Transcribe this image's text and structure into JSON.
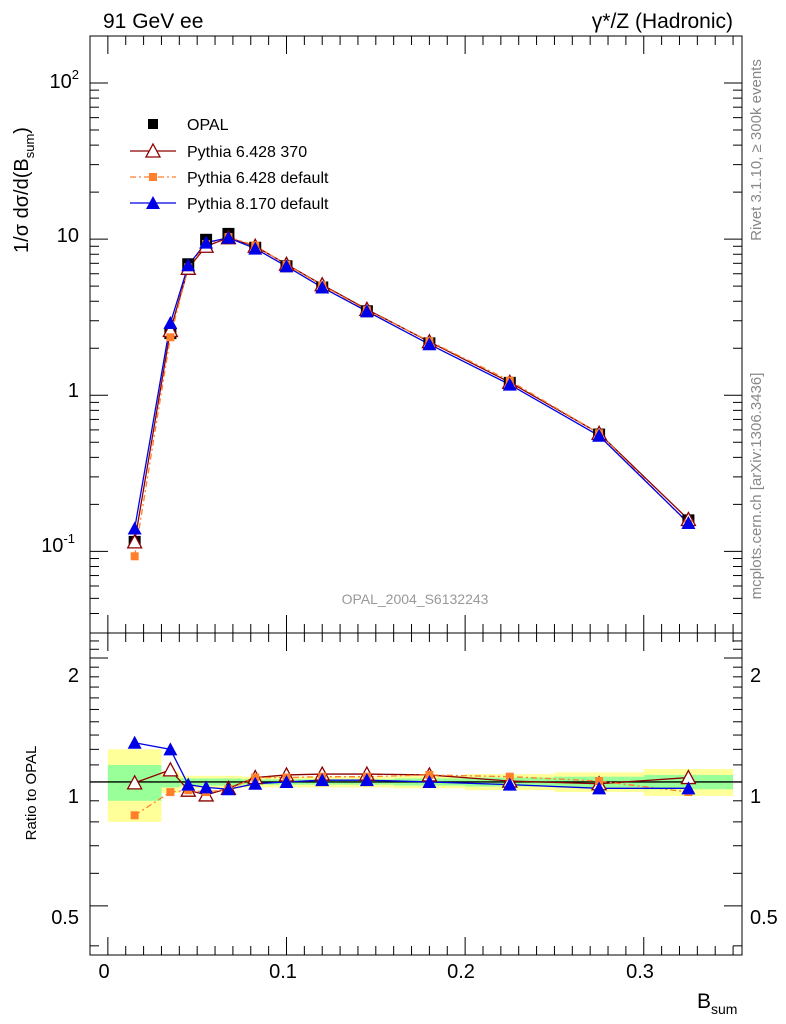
{
  "header": {
    "left": "91 GeV ee",
    "right": "γ*/Z (Hadronic)"
  },
  "side_labels": {
    "rivet": "Rivet 3.1.10, ≥ 300k events",
    "source": "mcplots.cern.ch [arXiv:1306.3436]"
  },
  "watermark": "OPAL_2004_S6132243",
  "axes": {
    "upper_ylabel": "1/σ dσ/d(B",
    "upper_ylabel_sub": "sum",
    "upper_ylabel_end": ")",
    "lower_ylabel": "Ratio to OPAL",
    "xlabel_main": "B",
    "xlabel_sub": "sum",
    "upper_yticks": [
      "10",
      "1",
      "10"
    ],
    "upper_ytick_exps": [
      "-1",
      "2"
    ],
    "lower_yticks": [
      "0.5",
      "1",
      "2"
    ],
    "xticks": [
      "0",
      "0.1",
      "0.2",
      "0.3"
    ]
  },
  "legend": [
    {
      "label": "OPAL"
    },
    {
      "label": "Pythia 6.428 370"
    },
    {
      "label": "Pythia 6.428 default"
    },
    {
      "label": "Pythia 8.170 default"
    }
  ],
  "chart_data": {
    "type": "line",
    "xlim": [
      -0.01,
      0.355
    ],
    "upper_ylim": [
      0.03,
      200
    ],
    "upper_log": true,
    "lower_ylim": [
      0.38,
      2.3
    ],
    "lower_log": true,
    "x": [
      0.015,
      0.035,
      0.045,
      0.055,
      0.0675,
      0.0825,
      0.1,
      0.12,
      0.145,
      0.18,
      0.225,
      0.275,
      0.325
    ],
    "x_edges": [
      0.0,
      0.03,
      0.04,
      0.05,
      0.06,
      0.075,
      0.09,
      0.11,
      0.13,
      0.16,
      0.2,
      0.25,
      0.3,
      0.35
    ],
    "series": [
      {
        "name": "OPAL",
        "color": "#000000",
        "marker": "square",
        "values": [
          0.115,
          2.5,
          6.9,
          9.9,
          10.8,
          8.8,
          6.7,
          4.9,
          3.45,
          2.15,
          1.2,
          0.56,
          0.158
        ]
      },
      {
        "name": "Pythia 6.428 370",
        "color": "#8b0000",
        "marker": "open-triangle",
        "values": [
          0.115,
          2.6,
          6.5,
          9.0,
          10.2,
          9.0,
          6.9,
          5.1,
          3.55,
          2.2,
          1.21,
          0.57,
          0.16
        ],
        "ratio": [
          0.995,
          1.07,
          0.955,
          0.93,
          0.965,
          1.025,
          1.04,
          1.045,
          1.045,
          1.04,
          1.005,
          0.99,
          1.025
        ]
      },
      {
        "name": "Pythia 6.428 default",
        "color": "#ff7f2a",
        "marker": "filled-square",
        "values": [
          0.093,
          2.35,
          6.6,
          9.3,
          10.3,
          9.1,
          6.85,
          5.05,
          3.5,
          2.22,
          1.24,
          0.57,
          0.15
        ],
        "ratio": [
          0.83,
          0.945,
          0.955,
          0.945,
          0.96,
          1.025,
          1.025,
          1.03,
          1.03,
          1.04,
          1.03,
          1.005,
          0.945
        ]
      },
      {
        "name": "Pythia 8.170 default",
        "color": "#0000e6",
        "marker": "filled-triangle",
        "values": [
          0.14,
          2.9,
          6.8,
          9.5,
          10.2,
          8.7,
          6.7,
          4.9,
          3.45,
          2.12,
          1.17,
          0.55,
          0.152
        ],
        "ratio": [
          1.245,
          1.2,
          0.985,
          0.97,
          0.96,
          0.99,
          1.0,
          1.01,
          1.01,
          1.0,
          0.985,
          0.965,
          0.965
        ]
      }
    ],
    "bands": {
      "inner": [
        0.1,
        0.03,
        0.02,
        0.02,
        0.02,
        0.015,
        0.015,
        0.015,
        0.015,
        0.02,
        0.025,
        0.03,
        0.04
      ],
      "outer": [
        0.2,
        0.06,
        0.035,
        0.035,
        0.035,
        0.03,
        0.03,
        0.03,
        0.03,
        0.035,
        0.045,
        0.055,
        0.075
      ],
      "inner_color": "#99ff99",
      "outer_color": "#ffff99"
    }
  }
}
